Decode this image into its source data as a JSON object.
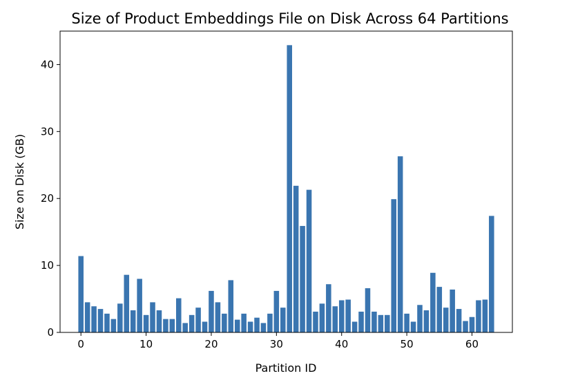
{
  "chart_data": {
    "type": "bar",
    "title": "Size of Product Embeddings File on Disk Across 64 Partitions",
    "xlabel": "Partition ID",
    "ylabel": "Size on Disk (GB)",
    "bar_color": "#3a75b0",
    "xlim": [
      -3.2,
      66.2
    ],
    "ylim": [
      0,
      45
    ],
    "xticks": [
      0,
      10,
      20,
      30,
      40,
      50,
      60
    ],
    "yticks": [
      0,
      10,
      20,
      30,
      40
    ],
    "grid": false,
    "x": [
      0,
      1,
      2,
      3,
      4,
      5,
      6,
      7,
      8,
      9,
      10,
      11,
      12,
      13,
      14,
      15,
      16,
      17,
      18,
      19,
      20,
      21,
      22,
      23,
      24,
      25,
      26,
      27,
      28,
      29,
      30,
      31,
      32,
      33,
      34,
      35,
      36,
      37,
      38,
      39,
      40,
      41,
      42,
      43,
      44,
      45,
      46,
      47,
      48,
      49,
      50,
      51,
      52,
      53,
      54,
      55,
      56,
      57,
      58,
      59,
      60,
      61,
      62,
      63
    ],
    "values": [
      11.4,
      4.5,
      3.9,
      3.5,
      2.8,
      2.0,
      4.3,
      8.6,
      3.3,
      8.0,
      2.6,
      4.5,
      3.3,
      2.0,
      2.0,
      5.1,
      1.4,
      2.6,
      3.7,
      1.6,
      6.2,
      4.5,
      2.8,
      7.8,
      1.9,
      2.8,
      1.6,
      2.2,
      1.4,
      2.8,
      6.2,
      3.7,
      42.9,
      21.9,
      15.9,
      21.3,
      3.1,
      4.3,
      7.2,
      3.9,
      4.8,
      4.9,
      1.6,
      3.1,
      6.6,
      3.1,
      2.6,
      2.6,
      19.9,
      26.3,
      2.8,
      1.6,
      4.1,
      3.3,
      8.9,
      6.8,
      3.7,
      6.4,
      3.5,
      1.7,
      2.3,
      4.8,
      4.9,
      17.4
    ]
  }
}
